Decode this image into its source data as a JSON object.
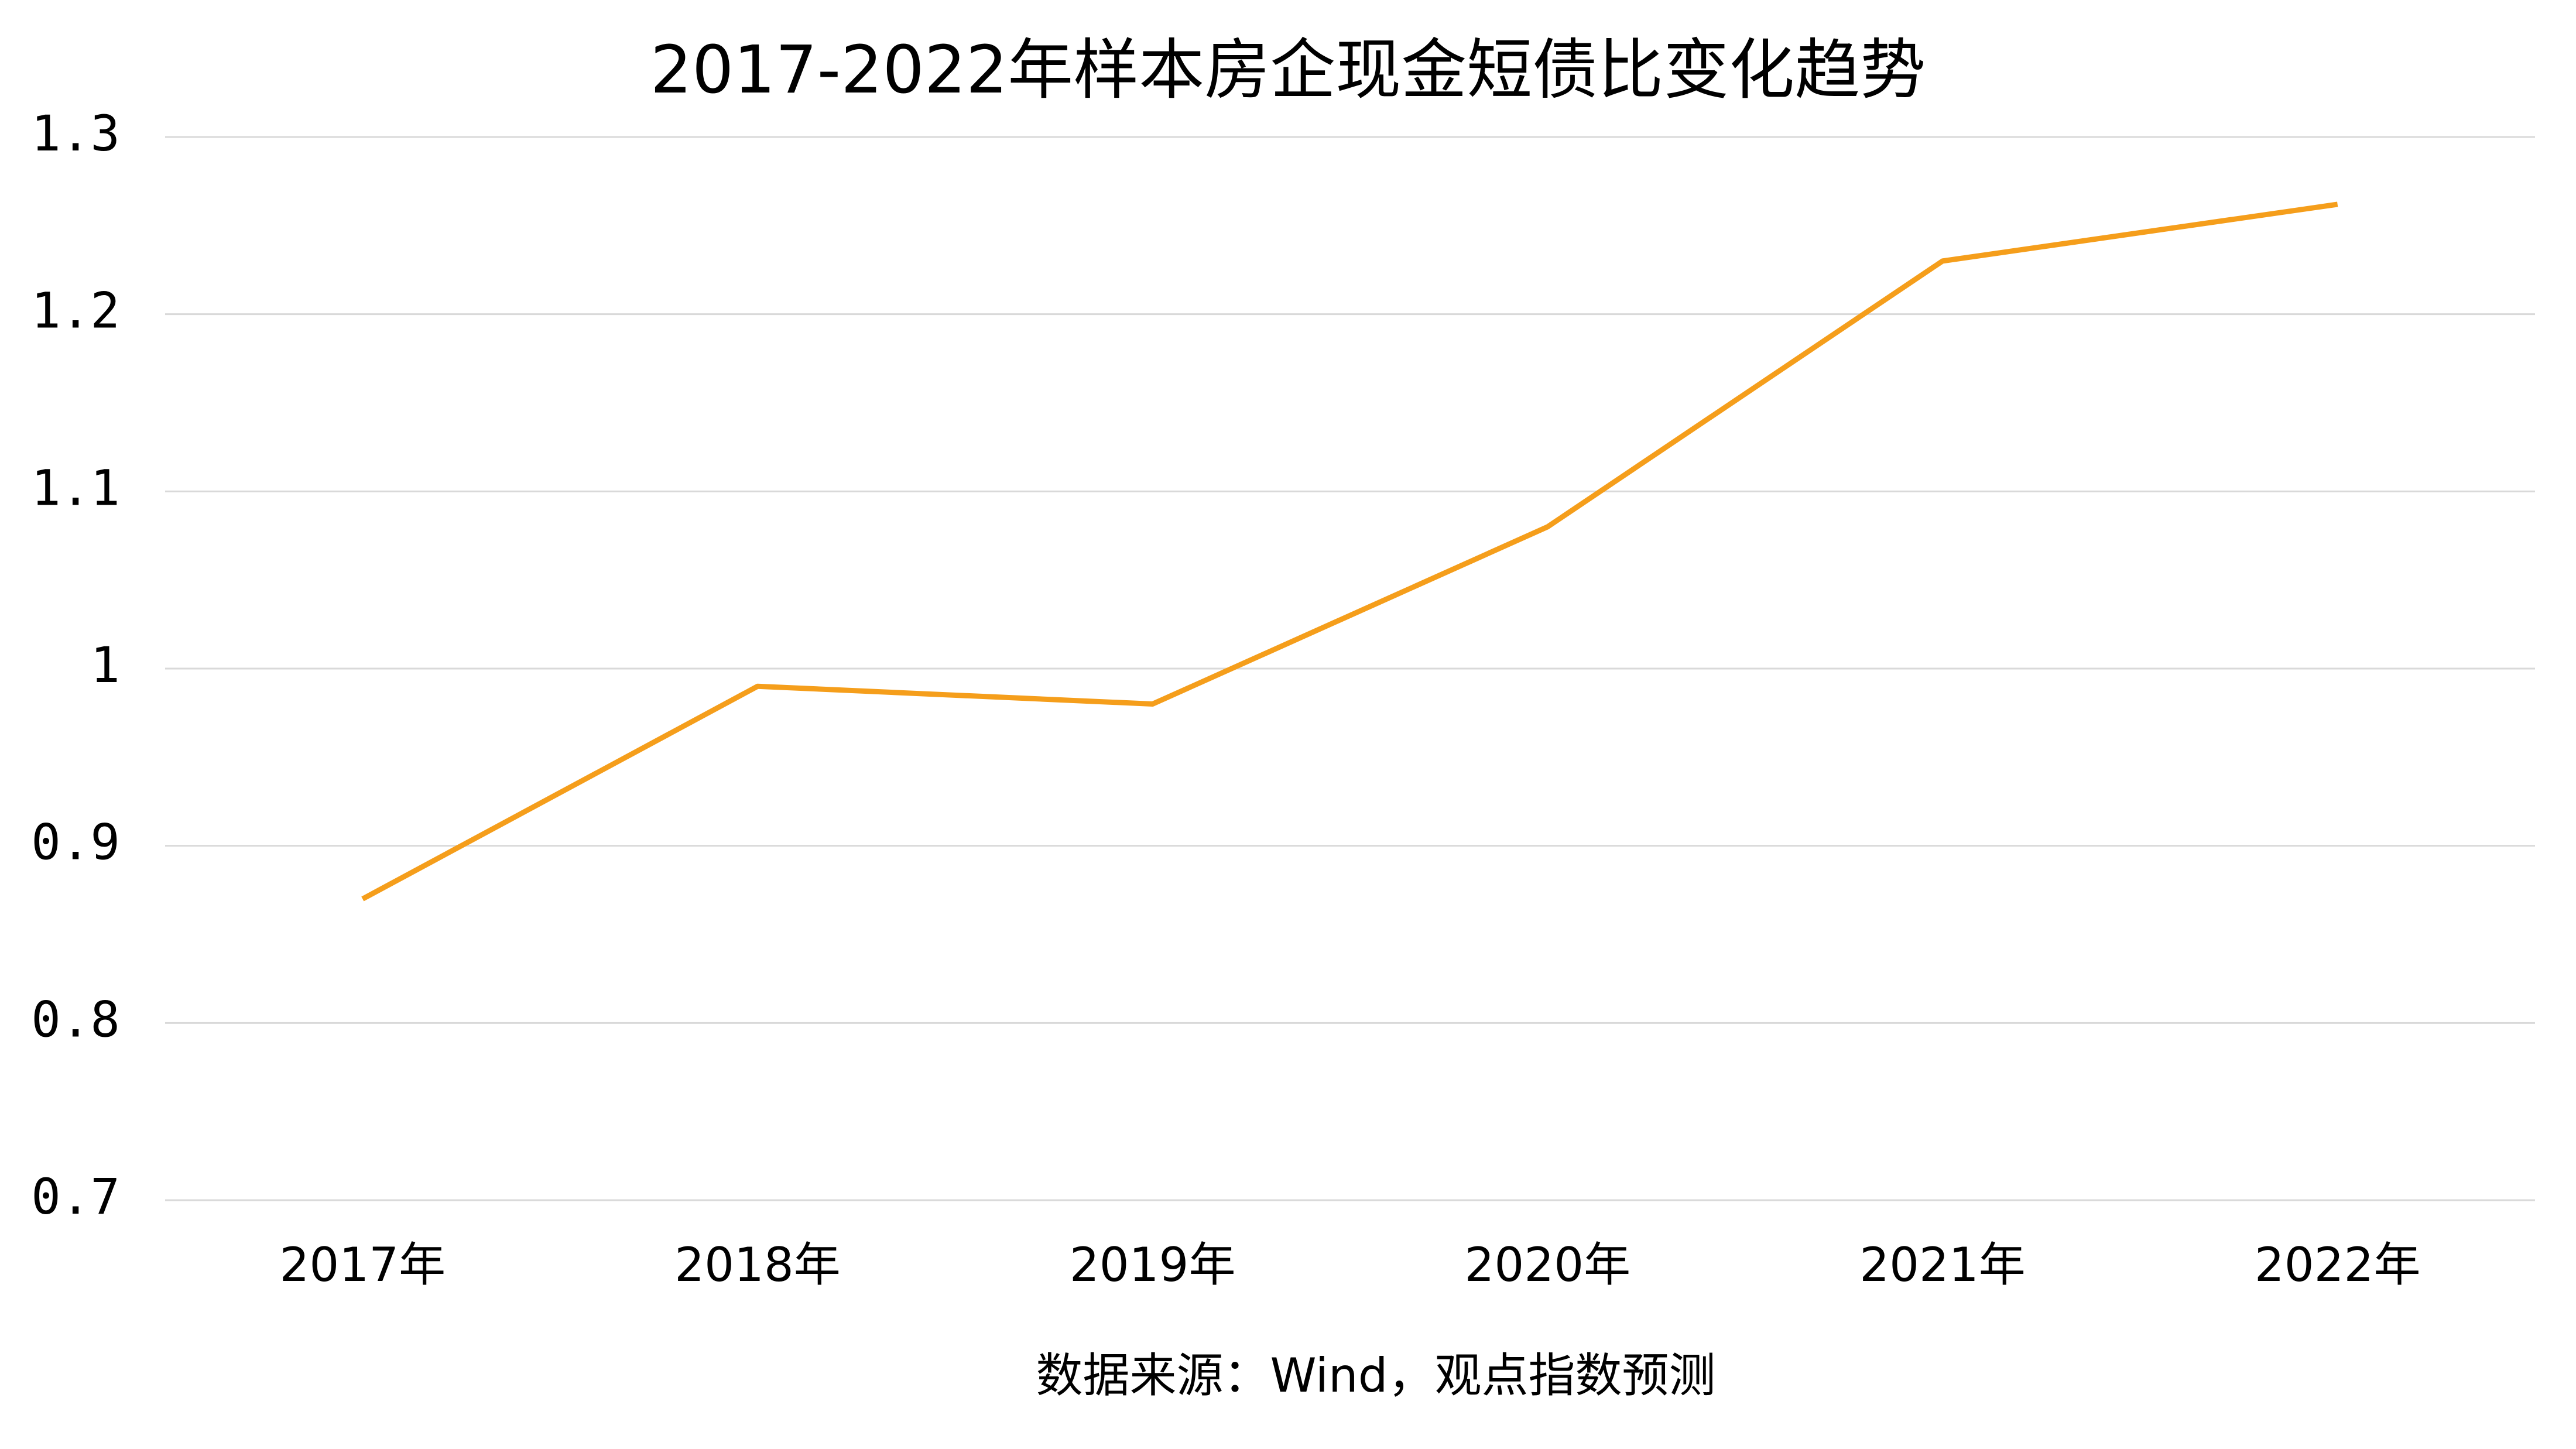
{
  "chart_data": {
    "type": "line",
    "title": "2017-2022年样本房企现金短债比变化趋势",
    "categories": [
      "2017年",
      "2018年",
      "2019年",
      "2020年",
      "2021年",
      "2022年"
    ],
    "values": [
      0.87,
      0.99,
      0.98,
      1.08,
      1.23,
      1.262
    ],
    "color": "#f59e1b",
    "ylim": [
      0.7,
      1.3
    ],
    "yticks": [
      0.7,
      0.8,
      0.9,
      1,
      1.1,
      1.2,
      1.3
    ],
    "grid": true,
    "source": "数据来源：Wind，观点指数预测"
  }
}
